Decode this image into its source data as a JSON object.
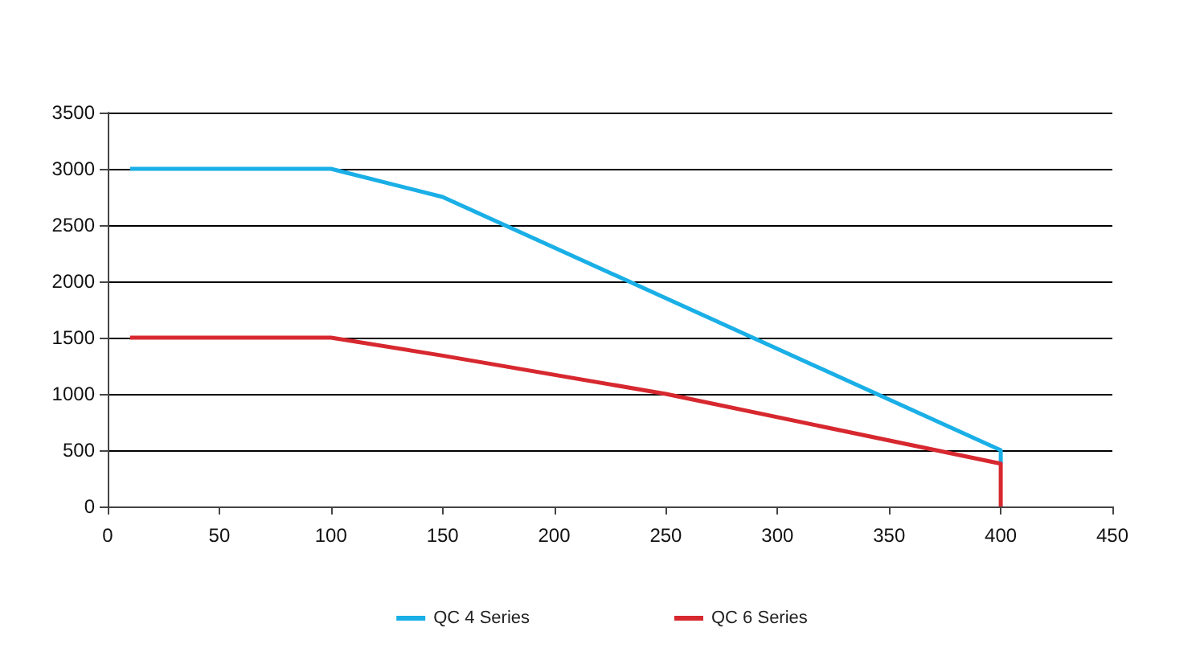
{
  "chart_data": {
    "type": "line",
    "legend": "bottom",
    "grid": "y",
    "marker": "none",
    "line_style": "solid",
    "xlim": [
      0,
      450
    ],
    "xticks": [
      0,
      50,
      100,
      150,
      200,
      250,
      300,
      350,
      400,
      450
    ],
    "ylim": [
      0,
      3500
    ],
    "yticks": [
      0,
      500,
      1000,
      1500,
      2000,
      2500,
      3000,
      3500
    ],
    "series": [
      {
        "name": "QC 4 Series",
        "color": "#1aafe6",
        "x": [
          10,
          100,
          150,
          400,
          400
        ],
        "values": [
          3000,
          3000,
          2750,
          500,
          380
        ]
      },
      {
        "name": "QC 6 Series",
        "color": "#d7282f",
        "x": [
          10,
          100,
          150,
          250,
          400,
          400
        ],
        "values": [
          1500,
          1500,
          1340,
          1000,
          380,
          0
        ]
      }
    ]
  }
}
